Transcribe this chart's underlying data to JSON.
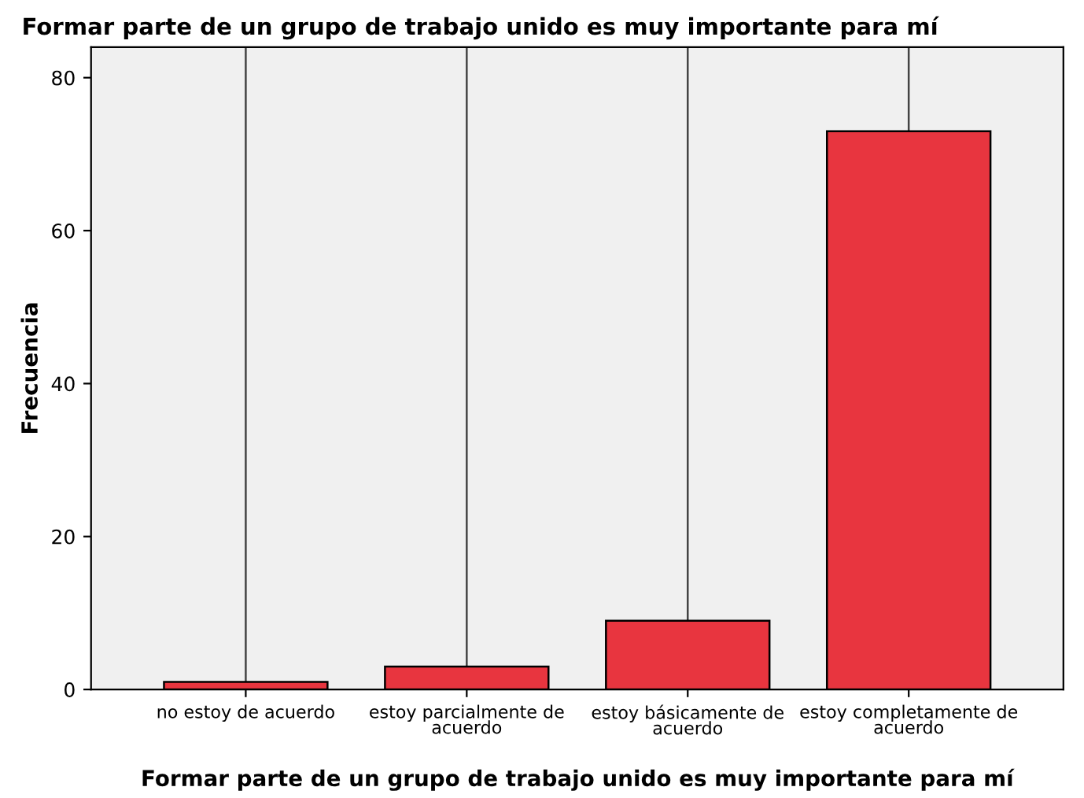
{
  "chart_data": {
    "type": "bar",
    "title": "Formar parte de un grupo de trabajo unido es muy importante para mí",
    "xlabel": "Formar parte de un grupo de trabajo unido es muy importante para mí",
    "ylabel": "Frecuencia",
    "categories": [
      "no estoy de acuerdo",
      "estoy parcialmente de\nacuerdo",
      "estoy básicamente de\nacuerdo",
      "estoy completamente de\nacuerdo"
    ],
    "values": [
      1,
      3,
      9,
      73
    ],
    "color": "#e8353f",
    "ylim": [
      0,
      84
    ],
    "yticks": [
      0,
      20,
      40,
      60,
      80
    ],
    "grid": "x"
  }
}
